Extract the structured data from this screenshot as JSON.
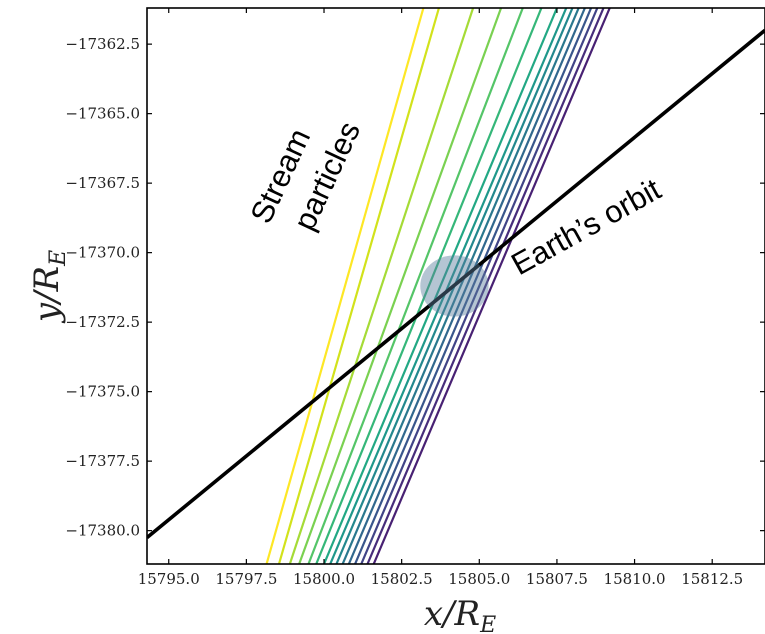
{
  "chart_data": {
    "type": "line",
    "xlabel": "x/R",
    "xlabel_sub": "E",
    "ylabel": "y/R",
    "ylabel_sub": "E",
    "xlim": [
      15794.3,
      15814.2
    ],
    "ylim": [
      -17381.2,
      -17361.2
    ],
    "x_ticks": [
      15795.0,
      15797.5,
      15800.0,
      15802.5,
      15805.0,
      15807.5,
      15810.0,
      15812.5
    ],
    "x_tick_labels": [
      "15795.0",
      "15797.5",
      "15800.0",
      "15802.5",
      "15805.0",
      "15807.5",
      "15810.0",
      "15812.5"
    ],
    "y_ticks": [
      -17362.5,
      -17365.0,
      -17367.5,
      -17370.0,
      -17372.5,
      -17375.0,
      -17377.5,
      -17380.0
    ],
    "y_tick_labels": [
      "−17362.5",
      "−17365.0",
      "−17367.5",
      "−17370.0",
      "−17372.5",
      "−17375.0",
      "−17377.5",
      "−17380.0"
    ],
    "grid": false,
    "earth_orbit": {
      "color": "#000000",
      "points": [
        [
          15794.3,
          -17380.25
        ],
        [
          15814.2,
          -17362.0
        ]
      ]
    },
    "earth_marker": {
      "x": 15804.2,
      "y": -17371.2,
      "radius": 1.1,
      "color": "#5a7e9e"
    },
    "stream_particles": {
      "colors": [
        "#fde725",
        "#d2e21b",
        "#a5db36",
        "#7ad151",
        "#54c568",
        "#35b779",
        "#22a884",
        "#1f988b",
        "#23888e",
        "#2a788e",
        "#31688e",
        "#39568c",
        "#414487",
        "#472d7b",
        "#482173"
      ],
      "lines": [
        [
          [
            15798.15,
            -17381.2
          ],
          [
            15803.2,
            -17361.2
          ]
        ],
        [
          [
            15798.55,
            -17381.2
          ],
          [
            15803.7,
            -17361.2
          ]
        ],
        [
          [
            15798.9,
            -17381.2
          ],
          [
            15804.8,
            -17361.2
          ]
        ],
        [
          [
            15799.2,
            -17381.2
          ],
          [
            15805.7,
            -17361.2
          ]
        ],
        [
          [
            15799.5,
            -17381.2
          ],
          [
            15806.4,
            -17361.2
          ]
        ],
        [
          [
            15799.75,
            -17381.2
          ],
          [
            15807.0,
            -17361.2
          ]
        ],
        [
          [
            15800.0,
            -17381.2
          ],
          [
            15807.5,
            -17361.2
          ]
        ],
        [
          [
            15800.2,
            -17381.2
          ],
          [
            15807.8,
            -17361.2
          ]
        ],
        [
          [
            15800.4,
            -17381.2
          ],
          [
            15808.0,
            -17361.2
          ]
        ],
        [
          [
            15800.6,
            -17381.2
          ],
          [
            15808.2,
            -17361.2
          ]
        ],
        [
          [
            15800.8,
            -17381.2
          ],
          [
            15808.4,
            -17361.2
          ]
        ],
        [
          [
            15801.0,
            -17381.2
          ],
          [
            15808.6,
            -17361.2
          ]
        ],
        [
          [
            15801.2,
            -17381.2
          ],
          [
            15808.8,
            -17361.2
          ]
        ],
        [
          [
            15801.4,
            -17381.2
          ],
          [
            15809.0,
            -17361.2
          ]
        ],
        [
          [
            15801.6,
            -17381.2
          ],
          [
            15809.2,
            -17361.2
          ]
        ]
      ]
    },
    "annotations": [
      {
        "text": "Stream",
        "x": 15798.9,
        "y": -17367.4,
        "rotation": -65
      },
      {
        "text": "particles",
        "x": 15800.4,
        "y": -17367.4,
        "rotation": -65
      },
      {
        "text": "Earth’s orbit",
        "x": 15808.6,
        "y": -17369.4,
        "rotation": -29
      }
    ]
  }
}
